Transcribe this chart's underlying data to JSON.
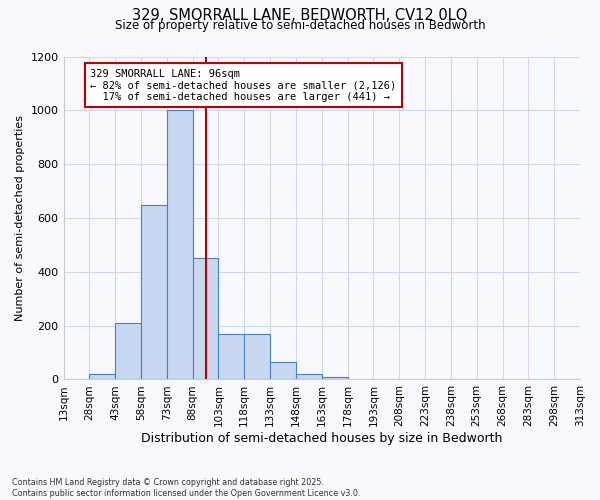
{
  "title_line1": "329, SMORRALL LANE, BEDWORTH, CV12 0LQ",
  "title_line2": "Size of property relative to semi-detached houses in Bedworth",
  "xlabel": "Distribution of semi-detached houses by size in Bedworth",
  "ylabel": "Number of semi-detached properties",
  "bar_edges": [
    13,
    28,
    43,
    58,
    73,
    88,
    103,
    118,
    133,
    148,
    163,
    178,
    193,
    208,
    223,
    238,
    253,
    268,
    283,
    298,
    313
  ],
  "bar_heights": [
    0,
    20,
    210,
    650,
    1000,
    450,
    170,
    170,
    65,
    20,
    10,
    0,
    0,
    0,
    0,
    0,
    0,
    0,
    0,
    0
  ],
  "bar_color": "#c8d8f0",
  "bar_edge_color": "#4a7fc0",
  "property_size": 96,
  "vline_color": "#c00000",
  "annotation_text": "329 SMORRALL LANE: 96sqm\n← 82% of semi-detached houses are smaller (2,126)\n  17% of semi-detached houses are larger (441) →",
  "annotation_box_color": "#ffffff",
  "annotation_box_edge": "#c00000",
  "ylim": [
    0,
    1200
  ],
  "yticks": [
    0,
    200,
    400,
    600,
    800,
    1000,
    1200
  ],
  "plot_bg_color": "#f8f8ff",
  "fig_bg_color": "#f8f8ff",
  "grid_color": "#d0d8f0",
  "footnote": "Contains HM Land Registry data © Crown copyright and database right 2025.\nContains public sector information licensed under the Open Government Licence v3.0."
}
